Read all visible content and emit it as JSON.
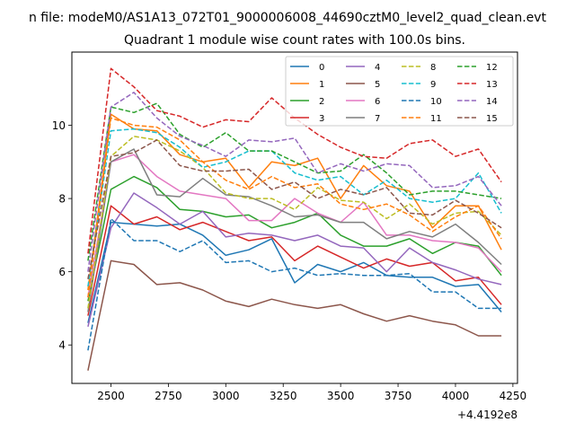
{
  "chart_data": {
    "type": "line",
    "suptitle": "n file: modeM0/AS1A13_072T01_9000006008_44690cztM0_level2_quad_clean.evt",
    "title": "Quadrant 1 module wise count rates with 100.0s bins.",
    "xlabel": "",
    "ylabel": "",
    "x_offset_label": "+4.4192e8",
    "xlim": [
      2330,
      4270
    ],
    "ylim": [
      2.95,
      12.0
    ],
    "xticks": [
      2500,
      2750,
      3000,
      3250,
      3500,
      3750,
      4000,
      4250
    ],
    "xtick_labels": [
      "2500",
      "2750",
      "3000",
      "3250",
      "3500",
      "3750",
      "4000",
      "4250"
    ],
    "yticks": [
      4,
      6,
      8,
      10
    ],
    "ytick_labels": [
      "4",
      "6",
      "8",
      "10"
    ],
    "grid": false,
    "legend_position": "top-right",
    "legend_columns": 4,
    "x": [
      2400,
      2500,
      2600,
      2700,
      2800,
      2900,
      3000,
      3100,
      3200,
      3300,
      3400,
      3500,
      3600,
      3700,
      3800,
      3900,
      4000,
      4100,
      4200
    ],
    "series": [
      {
        "name": "0",
        "color": "#1f77b4",
        "dash": "solid",
        "values": [
          4.6,
          7.35,
          7.3,
          7.25,
          7.3,
          7.0,
          6.45,
          6.6,
          6.9,
          5.7,
          6.2,
          6.0,
          6.25,
          5.9,
          5.85,
          5.85,
          5.6,
          5.65,
          4.9
        ]
      },
      {
        "name": "1",
        "color": "#ff7f0e",
        "dash": "solid",
        "values": [
          5.5,
          10.3,
          9.9,
          9.85,
          9.2,
          9.0,
          9.1,
          8.3,
          9.0,
          8.9,
          9.1,
          8.0,
          8.9,
          8.35,
          8.2,
          7.2,
          7.8,
          7.8,
          6.6
        ]
      },
      {
        "name": "2",
        "color": "#2ca02c",
        "dash": "solid",
        "values": [
          5.2,
          8.25,
          8.6,
          8.3,
          7.7,
          7.65,
          7.5,
          7.55,
          7.2,
          7.35,
          7.6,
          7.0,
          6.7,
          6.7,
          6.9,
          6.5,
          6.8,
          6.7,
          5.9
        ]
      },
      {
        "name": "3",
        "color": "#d62728",
        "dash": "solid",
        "values": [
          4.8,
          7.8,
          7.3,
          7.5,
          7.15,
          7.35,
          7.1,
          6.85,
          6.95,
          6.3,
          6.7,
          6.4,
          6.1,
          6.35,
          6.15,
          6.25,
          5.75,
          5.85,
          5.1
        ]
      },
      {
        "name": "4",
        "color": "#9467bd",
        "dash": "solid",
        "values": [
          4.5,
          7.2,
          8.15,
          7.75,
          7.3,
          7.65,
          6.95,
          7.05,
          7.0,
          6.85,
          7.0,
          6.7,
          6.65,
          6.0,
          6.65,
          6.25,
          6.05,
          5.8,
          5.65
        ]
      },
      {
        "name": "5",
        "color": "#8c564b",
        "dash": "solid",
        "values": [
          3.3,
          6.3,
          6.2,
          5.65,
          5.7,
          5.5,
          5.2,
          5.05,
          5.25,
          5.1,
          5.0,
          5.1,
          4.85,
          4.65,
          4.8,
          4.65,
          4.55,
          4.25,
          4.25
        ]
      },
      {
        "name": "6",
        "color": "#e377c2",
        "dash": "solid",
        "values": [
          5.3,
          9.0,
          9.2,
          8.6,
          8.2,
          8.1,
          8.0,
          7.4,
          7.4,
          8.0,
          7.6,
          7.35,
          7.9,
          7.0,
          7.0,
          6.85,
          6.8,
          6.65,
          6.0
        ]
      },
      {
        "name": "7",
        "color": "#7f7f7f",
        "dash": "solid",
        "values": [
          4.9,
          9.0,
          9.35,
          8.1,
          8.05,
          8.55,
          8.1,
          8.05,
          7.8,
          7.5,
          7.55,
          7.35,
          7.35,
          6.9,
          7.1,
          6.95,
          7.3,
          6.8,
          6.2
        ]
      },
      {
        "name": "8",
        "color": "#bcbd22",
        "dash": "dashed",
        "values": [
          5.0,
          9.15,
          9.7,
          9.6,
          9.3,
          8.85,
          8.15,
          8.0,
          8.0,
          7.7,
          8.3,
          7.95,
          7.9,
          7.45,
          7.85,
          7.3,
          7.6,
          7.65,
          7.0
        ]
      },
      {
        "name": "9",
        "color": "#17becf",
        "dash": "dashed",
        "values": [
          5.6,
          9.85,
          9.9,
          9.8,
          9.4,
          8.85,
          9.0,
          9.3,
          9.3,
          8.7,
          8.5,
          8.6,
          8.1,
          8.5,
          8.0,
          7.9,
          8.0,
          8.7,
          7.6
        ]
      },
      {
        "name": "10",
        "color": "#1f77b4",
        "dash": "dashed",
        "values": [
          3.85,
          7.45,
          6.85,
          6.85,
          6.55,
          6.85,
          6.25,
          6.3,
          6.0,
          6.1,
          5.9,
          5.95,
          5.9,
          5.9,
          5.95,
          5.45,
          5.45,
          5.0,
          5.0
        ]
      },
      {
        "name": "11",
        "color": "#ff7f0e",
        "dash": "dashed",
        "values": [
          5.3,
          10.2,
          10.0,
          9.95,
          9.6,
          9.0,
          8.5,
          8.25,
          8.6,
          8.3,
          8.4,
          7.85,
          7.7,
          7.85,
          7.55,
          7.1,
          7.5,
          7.8,
          6.9
        ]
      },
      {
        "name": "12",
        "color": "#2ca02c",
        "dash": "dashed",
        "values": [
          6.3,
          10.5,
          10.35,
          10.6,
          9.75,
          9.4,
          9.8,
          9.3,
          9.3,
          9.0,
          8.7,
          8.75,
          9.2,
          8.7,
          8.1,
          8.2,
          8.2,
          8.1,
          8.0
        ]
      },
      {
        "name": "13",
        "color": "#d62728",
        "dash": "dashed",
        "values": [
          6.5,
          11.55,
          11.05,
          10.4,
          10.25,
          9.95,
          10.15,
          10.1,
          10.75,
          10.2,
          9.75,
          9.4,
          9.15,
          9.1,
          9.5,
          9.6,
          9.15,
          9.35,
          8.45
        ]
      },
      {
        "name": "14",
        "color": "#9467bd",
        "dash": "dashed",
        "values": [
          6.0,
          10.5,
          10.9,
          10.2,
          9.7,
          9.45,
          9.15,
          9.6,
          9.55,
          9.65,
          8.7,
          8.95,
          8.75,
          8.95,
          8.9,
          8.3,
          8.35,
          8.6,
          7.8
        ]
      },
      {
        "name": "15",
        "color": "#8c564b",
        "dash": "dashed",
        "values": [
          5.8,
          9.15,
          9.25,
          9.6,
          8.9,
          8.75,
          8.75,
          8.8,
          8.25,
          8.45,
          8.0,
          8.25,
          8.1,
          8.3,
          7.6,
          7.55,
          7.95,
          7.6,
          7.2
        ]
      }
    ]
  }
}
